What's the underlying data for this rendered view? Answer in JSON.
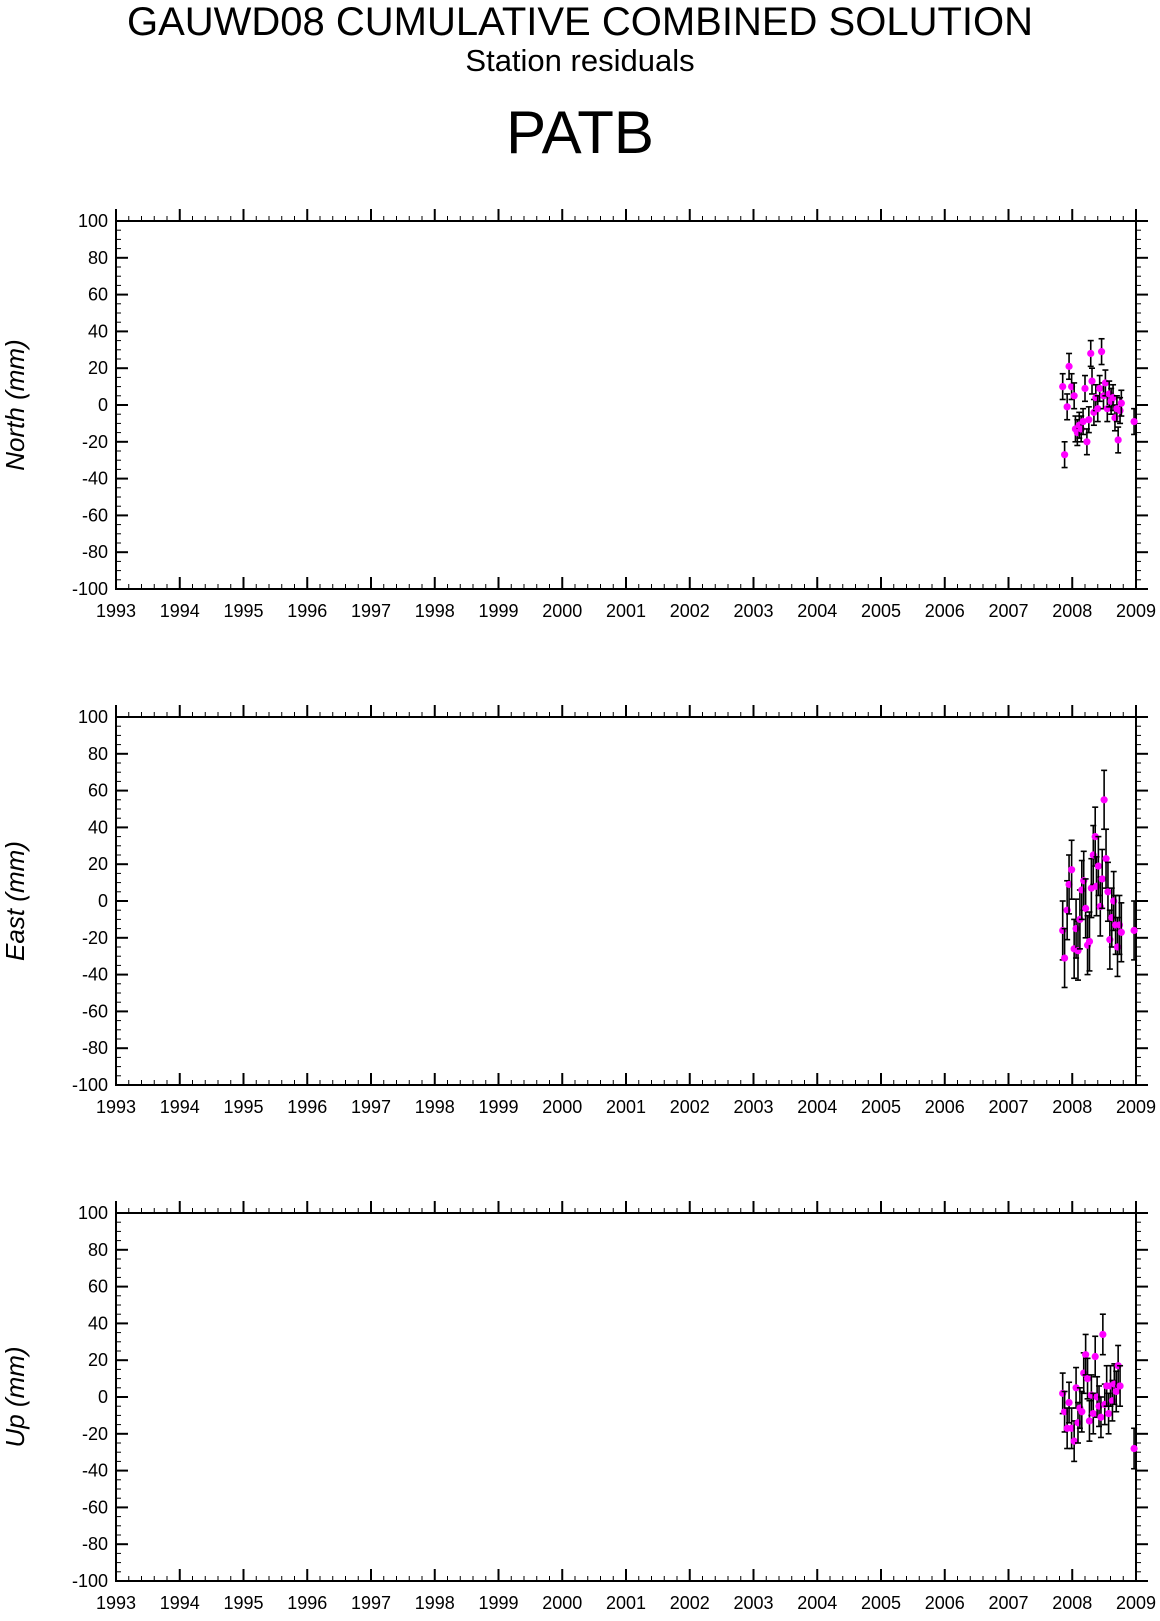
{
  "header": {
    "title": "GAUWD08 CUMULATIVE COMBINED SOLUTION",
    "subtitle": "Station residuals",
    "station": "PATB"
  },
  "colors": {
    "point": "#ff00ff",
    "errorbar": "#000000",
    "axis": "#000000"
  },
  "chart_data": [
    {
      "type": "scatter",
      "ylabel": "North (mm)",
      "xlim": [
        1993,
        2009
      ],
      "ylim": [
        -100,
        100
      ],
      "x_ticks": [
        "1993",
        "1994",
        "1995",
        "1996",
        "1997",
        "1998",
        "1999",
        "2000",
        "2001",
        "2002",
        "2003",
        "2004",
        "2005",
        "2006",
        "2007",
        "2008",
        "2009"
      ],
      "y_ticks": [
        "100",
        "80",
        "60",
        "40",
        "20",
        "0",
        "-20",
        "-40",
        "-60",
        "-80",
        "-100"
      ],
      "points": [
        {
          "x": 2007.85,
          "y": 10,
          "err": 7
        },
        {
          "x": 2007.88,
          "y": -27,
          "err": 7
        },
        {
          "x": 2007.92,
          "y": -1,
          "err": 7
        },
        {
          "x": 2007.95,
          "y": 21,
          "err": 7
        },
        {
          "x": 2007.99,
          "y": 10,
          "err": 7
        },
        {
          "x": 2008.03,
          "y": 5,
          "err": 7
        },
        {
          "x": 2008.05,
          "y": -13,
          "err": 7
        },
        {
          "x": 2008.08,
          "y": -15,
          "err": 7
        },
        {
          "x": 2008.11,
          "y": -11,
          "err": 7
        },
        {
          "x": 2008.14,
          "y": -13,
          "err": 7
        },
        {
          "x": 2008.17,
          "y": -9,
          "err": 7
        },
        {
          "x": 2008.2,
          "y": 9,
          "err": 7
        },
        {
          "x": 2008.23,
          "y": -20,
          "err": 7
        },
        {
          "x": 2008.26,
          "y": -8,
          "err": 7
        },
        {
          "x": 2008.29,
          "y": 28,
          "err": 7
        },
        {
          "x": 2008.31,
          "y": 13,
          "err": 7
        },
        {
          "x": 2008.34,
          "y": -4,
          "err": 7
        },
        {
          "x": 2008.37,
          "y": 4,
          "err": 7
        },
        {
          "x": 2008.4,
          "y": -2,
          "err": 7
        },
        {
          "x": 2008.43,
          "y": 9,
          "err": 7
        },
        {
          "x": 2008.46,
          "y": 29,
          "err": 7
        },
        {
          "x": 2008.49,
          "y": 5,
          "err": 7
        },
        {
          "x": 2008.52,
          "y": 12,
          "err": 7
        },
        {
          "x": 2008.55,
          "y": -2,
          "err": 7
        },
        {
          "x": 2008.58,
          "y": 6,
          "err": 7
        },
        {
          "x": 2008.61,
          "y": 2,
          "err": 7
        },
        {
          "x": 2008.64,
          "y": 4,
          "err": 7
        },
        {
          "x": 2008.67,
          "y": -7,
          "err": 7
        },
        {
          "x": 2008.7,
          "y": -2,
          "err": 7
        },
        {
          "x": 2008.72,
          "y": -19,
          "err": 7
        },
        {
          "x": 2008.75,
          "y": -3,
          "err": 7
        },
        {
          "x": 2008.77,
          "y": 1,
          "err": 7
        },
        {
          "x": 2008.97,
          "y": -9,
          "err": 7
        }
      ]
    },
    {
      "type": "scatter",
      "ylabel": "East (mm)",
      "xlim": [
        1993,
        2009
      ],
      "ylim": [
        -100,
        100
      ],
      "x_ticks": [
        "1993",
        "1994",
        "1995",
        "1996",
        "1997",
        "1998",
        "1999",
        "2000",
        "2001",
        "2002",
        "2003",
        "2004",
        "2005",
        "2006",
        "2007",
        "2008",
        "2009"
      ],
      "y_ticks": [
        "100",
        "80",
        "60",
        "40",
        "20",
        "0",
        "-20",
        "-40",
        "-60",
        "-80",
        "-100"
      ],
      "points": [
        {
          "x": 2007.85,
          "y": -16,
          "err": 16
        },
        {
          "x": 2007.88,
          "y": -31,
          "err": 16
        },
        {
          "x": 2007.92,
          "y": -5,
          "err": 16
        },
        {
          "x": 2007.95,
          "y": 9,
          "err": 16
        },
        {
          "x": 2007.99,
          "y": 17,
          "err": 16
        },
        {
          "x": 2008.03,
          "y": -26,
          "err": 16
        },
        {
          "x": 2008.06,
          "y": -15,
          "err": 16
        },
        {
          "x": 2008.09,
          "y": -27,
          "err": 16
        },
        {
          "x": 2008.12,
          "y": -10,
          "err": 16
        },
        {
          "x": 2008.15,
          "y": 6,
          "err": 16
        },
        {
          "x": 2008.18,
          "y": 11,
          "err": 16
        },
        {
          "x": 2008.21,
          "y": -4,
          "err": 16
        },
        {
          "x": 2008.24,
          "y": -24,
          "err": 16
        },
        {
          "x": 2008.27,
          "y": -22,
          "err": 16
        },
        {
          "x": 2008.3,
          "y": 7,
          "err": 16
        },
        {
          "x": 2008.33,
          "y": 25,
          "err": 16
        },
        {
          "x": 2008.36,
          "y": 35,
          "err": 16
        },
        {
          "x": 2008.38,
          "y": 8,
          "err": 16
        },
        {
          "x": 2008.41,
          "y": 19,
          "err": 16
        },
        {
          "x": 2008.44,
          "y": -3,
          "err": 16
        },
        {
          "x": 2008.47,
          "y": 12,
          "err": 16
        },
        {
          "x": 2008.5,
          "y": 55,
          "err": 16
        },
        {
          "x": 2008.53,
          "y": 23,
          "err": 16
        },
        {
          "x": 2008.56,
          "y": 5,
          "err": 16
        },
        {
          "x": 2008.59,
          "y": -21,
          "err": 16
        },
        {
          "x": 2008.62,
          "y": -9,
          "err": 16
        },
        {
          "x": 2008.65,
          "y": 0,
          "err": 16
        },
        {
          "x": 2008.68,
          "y": -13,
          "err": 16
        },
        {
          "x": 2008.71,
          "y": -25,
          "err": 16
        },
        {
          "x": 2008.74,
          "y": -13,
          "err": 16
        },
        {
          "x": 2008.77,
          "y": -17,
          "err": 16
        },
        {
          "x": 2008.97,
          "y": -16,
          "err": 16
        }
      ]
    },
    {
      "type": "scatter",
      "ylabel": "Up (mm)",
      "xlim": [
        1993,
        2009
      ],
      "ylim": [
        -100,
        100
      ],
      "x_ticks": [
        "1993",
        "1994",
        "1995",
        "1996",
        "1997",
        "1998",
        "1999",
        "2000",
        "2001",
        "2002",
        "2003",
        "2004",
        "2005",
        "2006",
        "2007",
        "2008",
        "2009"
      ],
      "y_ticks": [
        "100",
        "80",
        "60",
        "40",
        "20",
        "0",
        "-20",
        "-40",
        "-60",
        "-80",
        "-100"
      ],
      "points": [
        {
          "x": 2007.85,
          "y": 2,
          "err": 11
        },
        {
          "x": 2007.88,
          "y": -8,
          "err": 11
        },
        {
          "x": 2007.92,
          "y": -17,
          "err": 11
        },
        {
          "x": 2007.95,
          "y": -3,
          "err": 11
        },
        {
          "x": 2007.99,
          "y": -17,
          "err": 11
        },
        {
          "x": 2008.03,
          "y": -24,
          "err": 11
        },
        {
          "x": 2008.06,
          "y": 5,
          "err": 11
        },
        {
          "x": 2008.09,
          "y": -14,
          "err": 11
        },
        {
          "x": 2008.12,
          "y": -6,
          "err": 11
        },
        {
          "x": 2008.15,
          "y": -8,
          "err": 11
        },
        {
          "x": 2008.18,
          "y": 13,
          "err": 11
        },
        {
          "x": 2008.21,
          "y": 23,
          "err": 11
        },
        {
          "x": 2008.24,
          "y": 10,
          "err": 11
        },
        {
          "x": 2008.27,
          "y": -13,
          "err": 11
        },
        {
          "x": 2008.3,
          "y": 1,
          "err": 11
        },
        {
          "x": 2008.33,
          "y": -9,
          "err": 11
        },
        {
          "x": 2008.36,
          "y": 22,
          "err": 11
        },
        {
          "x": 2008.39,
          "y": 0,
          "err": 11
        },
        {
          "x": 2008.42,
          "y": -5,
          "err": 11
        },
        {
          "x": 2008.45,
          "y": -11,
          "err": 11
        },
        {
          "x": 2008.48,
          "y": 34,
          "err": 11
        },
        {
          "x": 2008.51,
          "y": -4,
          "err": 11
        },
        {
          "x": 2008.54,
          "y": 6,
          "err": 11
        },
        {
          "x": 2008.57,
          "y": -9,
          "err": 11
        },
        {
          "x": 2008.6,
          "y": 6,
          "err": 11
        },
        {
          "x": 2008.63,
          "y": -2,
          "err": 11
        },
        {
          "x": 2008.66,
          "y": 7,
          "err": 11
        },
        {
          "x": 2008.69,
          "y": 3,
          "err": 11
        },
        {
          "x": 2008.72,
          "y": 17,
          "err": 11
        },
        {
          "x": 2008.75,
          "y": 6,
          "err": 11
        },
        {
          "x": 2008.97,
          "y": -28,
          "err": 11
        }
      ]
    }
  ]
}
